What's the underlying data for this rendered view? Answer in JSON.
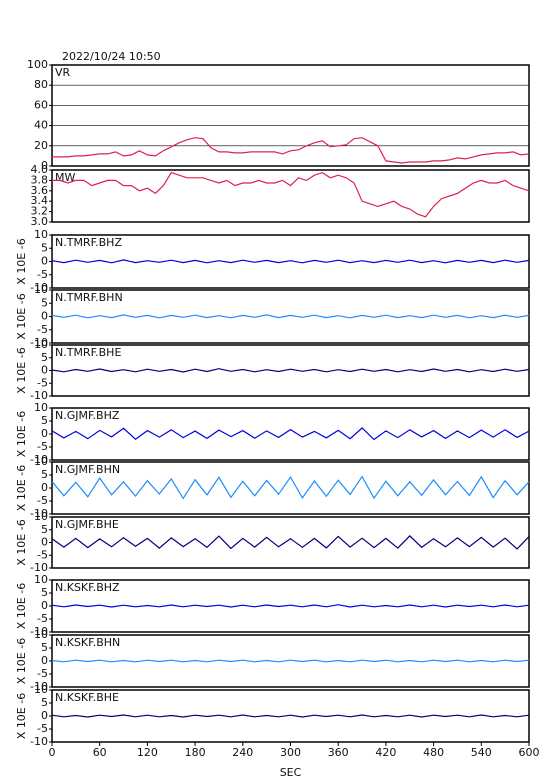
{
  "chart_data": [
    {
      "type": "line",
      "title": "2022/10/24 10:50",
      "label": "VR",
      "color": "#e0204a",
      "grid": true,
      "xlim": [
        0,
        600
      ],
      "ylim": [
        0,
        100
      ],
      "yticks": [
        0,
        20,
        40,
        60,
        80,
        100
      ],
      "x": [
        0,
        10,
        20,
        30,
        40,
        50,
        60,
        70,
        80,
        90,
        100,
        110,
        120,
        130,
        140,
        150,
        160,
        170,
        180,
        190,
        200,
        210,
        220,
        230,
        240,
        250,
        260,
        270,
        280,
        290,
        300,
        310,
        320,
        330,
        340,
        350,
        360,
        370,
        380,
        390,
        400,
        410,
        420,
        430,
        440,
        450,
        460,
        470,
        480,
        490,
        500,
        510,
        520,
        530,
        540,
        550,
        560,
        570,
        580,
        590,
        600
      ],
      "values": [
        9,
        9,
        9,
        10,
        10,
        11,
        12,
        12,
        14,
        10,
        11,
        15,
        11,
        10,
        15,
        19,
        23,
        26,
        28,
        27,
        18,
        14,
        14,
        13,
        13,
        14,
        14,
        14,
        14,
        12,
        15,
        16,
        20,
        23,
        25,
        19,
        20,
        21,
        27,
        28,
        24,
        20,
        5,
        4,
        3,
        4,
        4,
        4,
        5,
        5,
        6,
        8,
        7,
        9,
        11,
        12,
        13,
        13,
        14,
        11,
        12
      ]
    },
    {
      "type": "line",
      "label": "MW",
      "color": "#e0204a",
      "grid": false,
      "xlim": [
        0,
        600
      ],
      "ylim": [
        3.0,
        4.0
      ],
      "yticks": [
        {
          "value": 3.0,
          "label": "3.0"
        },
        {
          "value": 3.2,
          "label": "3.2"
        },
        {
          "value": 3.4,
          "label": "3.4"
        },
        {
          "value": 3.6,
          "label": "3.6"
        },
        {
          "value": 3.8,
          "label": "3.8"
        },
        {
          "value": 4.0,
          "label": "4.0"
        }
      ],
      "x": [
        0,
        10,
        20,
        30,
        40,
        50,
        60,
        70,
        80,
        90,
        100,
        110,
        120,
        130,
        140,
        150,
        160,
        170,
        180,
        190,
        200,
        210,
        220,
        230,
        240,
        250,
        260,
        270,
        280,
        290,
        300,
        310,
        320,
        330,
        340,
        350,
        360,
        370,
        380,
        390,
        400,
        410,
        420,
        430,
        440,
        450,
        460,
        470,
        480,
        490,
        500,
        510,
        520,
        530,
        540,
        550,
        560,
        570,
        580,
        590,
        600
      ],
      "values": [
        3.8,
        3.8,
        3.75,
        3.8,
        3.8,
        3.7,
        3.75,
        3.8,
        3.8,
        3.7,
        3.7,
        3.6,
        3.65,
        3.55,
        3.7,
        3.95,
        3.9,
        3.85,
        3.85,
        3.85,
        3.8,
        3.75,
        3.8,
        3.7,
        3.75,
        3.75,
        3.8,
        3.75,
        3.75,
        3.8,
        3.7,
        3.85,
        3.8,
        3.9,
        3.95,
        3.85,
        3.9,
        3.85,
        3.75,
        3.4,
        3.35,
        3.3,
        3.35,
        3.4,
        3.3,
        3.25,
        3.15,
        3.1,
        3.3,
        3.45,
        3.5,
        3.55,
        3.65,
        3.75,
        3.8,
        3.75,
        3.75,
        3.8,
        3.7,
        3.65,
        3.6
      ]
    },
    {
      "type": "line",
      "label": "N.TMRF.BHZ",
      "ylabel": "X 10E -6",
      "color": "#0000e0",
      "xlim": [
        0,
        600
      ],
      "ylim": [
        -10,
        10
      ],
      "yticks": [
        -10,
        -5,
        0,
        5,
        10
      ],
      "x": [
        0,
        15,
        30,
        45,
        60,
        75,
        90,
        105,
        120,
        135,
        150,
        165,
        180,
        195,
        210,
        225,
        240,
        255,
        270,
        285,
        300,
        315,
        330,
        345,
        360,
        375,
        390,
        405,
        420,
        435,
        450,
        465,
        480,
        495,
        510,
        525,
        540,
        555,
        570,
        585,
        600
      ],
      "values": [
        0.3,
        -0.4,
        0.5,
        -0.3,
        0.4,
        -0.5,
        0.6,
        -0.4,
        0.3,
        -0.3,
        0.5,
        -0.4,
        0.4,
        -0.5,
        0.3,
        -0.4,
        0.5,
        -0.3,
        0.4,
        -0.4,
        0.3,
        -0.5,
        0.4,
        -0.3,
        0.5,
        -0.4,
        0.3,
        -0.4,
        0.4,
        -0.3,
        0.5,
        -0.4,
        0.3,
        -0.5,
        0.4,
        -0.3,
        0.4,
        -0.4,
        0.5,
        -0.3,
        0.4
      ]
    },
    {
      "type": "line",
      "label": "N.TMRF.BHN",
      "ylabel": "X 10E -6",
      "color": "#1e8cff",
      "xlim": [
        0,
        600
      ],
      "ylim": [
        -10,
        10
      ],
      "yticks": [
        -10,
        -5,
        0,
        5,
        10
      ],
      "x": [
        0,
        15,
        30,
        45,
        60,
        75,
        90,
        105,
        120,
        135,
        150,
        165,
        180,
        195,
        210,
        225,
        240,
        255,
        270,
        285,
        300,
        315,
        330,
        345,
        360,
        375,
        390,
        405,
        420,
        435,
        450,
        465,
        480,
        495,
        510,
        525,
        540,
        555,
        570,
        585,
        600
      ],
      "values": [
        0.4,
        -0.3,
        0.5,
        -0.5,
        0.3,
        -0.4,
        0.6,
        -0.3,
        0.4,
        -0.5,
        0.4,
        -0.3,
        0.5,
        -0.4,
        0.3,
        -0.5,
        0.4,
        -0.3,
        0.6,
        -0.4,
        0.4,
        -0.3,
        0.5,
        -0.4,
        0.3,
        -0.5,
        0.4,
        -0.3,
        0.5,
        -0.4,
        0.3,
        -0.4,
        0.5,
        -0.3,
        0.4,
        -0.5,
        0.3,
        -0.4,
        0.5,
        -0.3,
        0.4
      ]
    },
    {
      "type": "line",
      "label": "N.TMRF.BHE",
      "ylabel": "X 10E -6",
      "color": "#000080",
      "xlim": [
        0,
        600
      ],
      "ylim": [
        -10,
        10
      ],
      "yticks": [
        -10,
        -5,
        0,
        5,
        10
      ],
      "x": [
        0,
        15,
        30,
        45,
        60,
        75,
        90,
        105,
        120,
        135,
        150,
        165,
        180,
        195,
        210,
        225,
        240,
        255,
        270,
        285,
        300,
        315,
        330,
        345,
        360,
        375,
        390,
        405,
        420,
        435,
        450,
        465,
        480,
        495,
        510,
        525,
        540,
        555,
        570,
        585,
        600
      ],
      "values": [
        0.2,
        -0.5,
        0.4,
        -0.3,
        0.6,
        -0.4,
        0.3,
        -0.5,
        0.5,
        -0.3,
        0.4,
        -0.6,
        0.5,
        -0.4,
        0.7,
        -0.3,
        0.4,
        -0.5,
        0.3,
        -0.4,
        0.5,
        -0.3,
        0.4,
        -0.5,
        0.3,
        -0.4,
        0.5,
        -0.3,
        0.4,
        -0.5,
        0.3,
        -0.4,
        0.6,
        -0.3,
        0.4,
        -0.5,
        0.3,
        -0.4,
        0.5,
        -0.3,
        0.4
      ]
    },
    {
      "type": "line",
      "label": "N.GJMF.BHZ",
      "ylabel": "X 10E -6",
      "color": "#0000e0",
      "xlim": [
        0,
        600
      ],
      "ylim": [
        -10,
        10
      ],
      "yticks": [
        -10,
        -5,
        0,
        5,
        10
      ],
      "x": [
        0,
        15,
        30,
        45,
        60,
        75,
        90,
        105,
        120,
        135,
        150,
        165,
        180,
        195,
        210,
        225,
        240,
        255,
        270,
        285,
        300,
        315,
        330,
        345,
        360,
        375,
        390,
        405,
        420,
        435,
        450,
        465,
        480,
        495,
        510,
        525,
        540,
        555,
        570,
        585,
        600
      ],
      "values": [
        1.2,
        -1.5,
        1.0,
        -1.8,
        1.4,
        -1.1,
        2.2,
        -2.0,
        1.3,
        -1.2,
        1.6,
        -1.4,
        1.1,
        -1.7,
        1.5,
        -1.0,
        1.3,
        -1.6,
        1.2,
        -1.3,
        1.7,
        -1.2,
        1.0,
        -1.5,
        1.4,
        -1.8,
        2.3,
        -2.1,
        1.2,
        -1.4,
        1.6,
        -1.1,
        1.3,
        -1.7,
        1.2,
        -1.4,
        1.5,
        -1.2,
        1.6,
        -1.3,
        1.1
      ]
    },
    {
      "type": "line",
      "label": "N.GJMF.BHN",
      "ylabel": "X 10E -6",
      "color": "#1e8cff",
      "xlim": [
        0,
        600
      ],
      "ylim": [
        -10,
        10
      ],
      "yticks": [
        -10,
        -5,
        0,
        5,
        10
      ],
      "x": [
        0,
        15,
        30,
        45,
        60,
        75,
        90,
        105,
        120,
        135,
        150,
        165,
        180,
        195,
        210,
        225,
        240,
        255,
        270,
        285,
        300,
        315,
        330,
        345,
        360,
        375,
        390,
        405,
        420,
        435,
        450,
        465,
        480,
        495,
        510,
        525,
        540,
        555,
        570,
        585,
        600
      ],
      "values": [
        2.5,
        -3.0,
        2.2,
        -3.4,
        3.8,
        -2.6,
        2.4,
        -3.1,
        2.8,
        -2.3,
        3.5,
        -4.0,
        3.2,
        -2.7,
        4.1,
        -3.6,
        2.6,
        -3.0,
        2.9,
        -2.4,
        4.2,
        -3.8,
        2.7,
        -3.2,
        3.0,
        -2.5,
        4.4,
        -3.9,
        2.6,
        -3.0,
        2.4,
        -2.8,
        3.1,
        -2.6,
        2.5,
        -2.9,
        4.3,
        -3.7,
        2.8,
        -2.6,
        2.4
      ]
    },
    {
      "type": "line",
      "label": "N.GJMF.BHE",
      "ylabel": "X 10E -6",
      "color": "#000080",
      "xlim": [
        0,
        600
      ],
      "ylim": [
        -10,
        10
      ],
      "yticks": [
        -10,
        -5,
        0,
        5,
        10
      ],
      "x": [
        0,
        15,
        30,
        45,
        60,
        75,
        90,
        105,
        120,
        135,
        150,
        165,
        180,
        195,
        210,
        225,
        240,
        255,
        270,
        285,
        300,
        315,
        330,
        345,
        360,
        375,
        390,
        405,
        420,
        435,
        450,
        465,
        480,
        495,
        510,
        525,
        540,
        555,
        570,
        585,
        600
      ],
      "values": [
        1.5,
        -1.8,
        1.6,
        -2.0,
        1.4,
        -1.7,
        1.9,
        -1.5,
        1.6,
        -2.2,
        1.8,
        -1.6,
        1.5,
        -1.9,
        2.5,
        -2.3,
        1.6,
        -1.8,
        2.0,
        -1.7,
        1.5,
        -1.9,
        1.6,
        -2.1,
        2.4,
        -1.8,
        1.7,
        -2.0,
        1.6,
        -2.2,
        2.6,
        -1.9,
        1.5,
        -1.7,
        1.8,
        -1.6,
        2.0,
        -1.8,
        1.7,
        -2.5,
        2.3
      ]
    },
    {
      "type": "line",
      "label": "N.KSKF.BHZ",
      "ylabel": "X 10E -6",
      "color": "#0000e0",
      "xlim": [
        0,
        600
      ],
      "ylim": [
        -10,
        10
      ],
      "yticks": [
        -10,
        -5,
        0,
        5,
        10
      ],
      "x": [
        0,
        15,
        30,
        45,
        60,
        75,
        90,
        105,
        120,
        135,
        150,
        165,
        180,
        195,
        210,
        225,
        240,
        255,
        270,
        285,
        300,
        315,
        330,
        345,
        360,
        375,
        390,
        405,
        420,
        435,
        450,
        465,
        480,
        495,
        510,
        525,
        540,
        555,
        570,
        585,
        600
      ],
      "values": [
        0.3,
        -0.3,
        0.4,
        -0.2,
        0.3,
        -0.4,
        0.3,
        -0.3,
        0.2,
        -0.3,
        0.4,
        -0.3,
        0.3,
        -0.2,
        0.3,
        -0.4,
        0.3,
        -0.3,
        0.4,
        -0.2,
        0.3,
        -0.3,
        0.4,
        -0.3,
        0.5,
        -0.4,
        0.3,
        -0.3,
        0.2,
        -0.3,
        0.4,
        -0.3,
        0.3,
        -0.4,
        0.3,
        -0.2,
        0.3,
        -0.3,
        0.4,
        -0.3,
        0.3
      ]
    },
    {
      "type": "line",
      "label": "N.KSKF.BHN",
      "ylabel": "X 10E -6",
      "color": "#1e8cff",
      "xlim": [
        0,
        600
      ],
      "ylim": [
        -10,
        10
      ],
      "yticks": [
        -10,
        -5,
        0,
        5,
        10
      ],
      "x": [
        0,
        15,
        30,
        45,
        60,
        75,
        90,
        105,
        120,
        135,
        150,
        165,
        180,
        195,
        210,
        225,
        240,
        255,
        270,
        285,
        300,
        315,
        330,
        345,
        360,
        375,
        390,
        405,
        420,
        435,
        450,
        465,
        480,
        495,
        510,
        525,
        540,
        555,
        570,
        585,
        600
      ],
      "values": [
        0.2,
        -0.3,
        0.3,
        -0.2,
        0.3,
        -0.3,
        0.2,
        -0.3,
        0.3,
        -0.2,
        0.3,
        -0.3,
        0.2,
        -0.3,
        0.3,
        -0.2,
        0.3,
        -0.3,
        0.2,
        -0.3,
        0.3,
        -0.2,
        0.3,
        -0.3,
        0.2,
        -0.3,
        0.3,
        -0.2,
        0.3,
        -0.3,
        0.2,
        -0.3,
        0.3,
        -0.2,
        0.3,
        -0.3,
        0.2,
        -0.3,
        0.3,
        -0.2,
        0.3
      ]
    },
    {
      "type": "line",
      "label": "N.KSKF.BHE",
      "ylabel": "X 10E -6",
      "color": "#000080",
      "xlabel": "SEC",
      "xlim": [
        0,
        600
      ],
      "ylim": [
        -10,
        10
      ],
      "yticks": [
        -10,
        -5,
        0,
        5,
        10
      ],
      "xticks": [
        0,
        60,
        120,
        180,
        240,
        300,
        360,
        420,
        480,
        540,
        600
      ],
      "x": [
        0,
        15,
        30,
        45,
        60,
        75,
        90,
        105,
        120,
        135,
        150,
        165,
        180,
        195,
        210,
        225,
        240,
        255,
        270,
        285,
        300,
        315,
        330,
        345,
        360,
        375,
        390,
        405,
        420,
        435,
        450,
        465,
        480,
        495,
        510,
        525,
        540,
        555,
        570,
        585,
        600
      ],
      "values": [
        0.3,
        -0.3,
        0.2,
        -0.4,
        0.3,
        -0.2,
        0.4,
        -0.3,
        0.3,
        -0.3,
        0.2,
        -0.4,
        0.3,
        -0.2,
        0.3,
        -0.3,
        0.4,
        -0.3,
        0.2,
        -0.3,
        0.3,
        -0.4,
        0.3,
        -0.2,
        0.3,
        -0.3,
        0.4,
        -0.3,
        0.2,
        -0.3,
        0.3,
        -0.4,
        0.3,
        -0.2,
        0.3,
        -0.3,
        0.4,
        -0.3,
        0.2,
        -0.3,
        0.3
      ]
    }
  ]
}
